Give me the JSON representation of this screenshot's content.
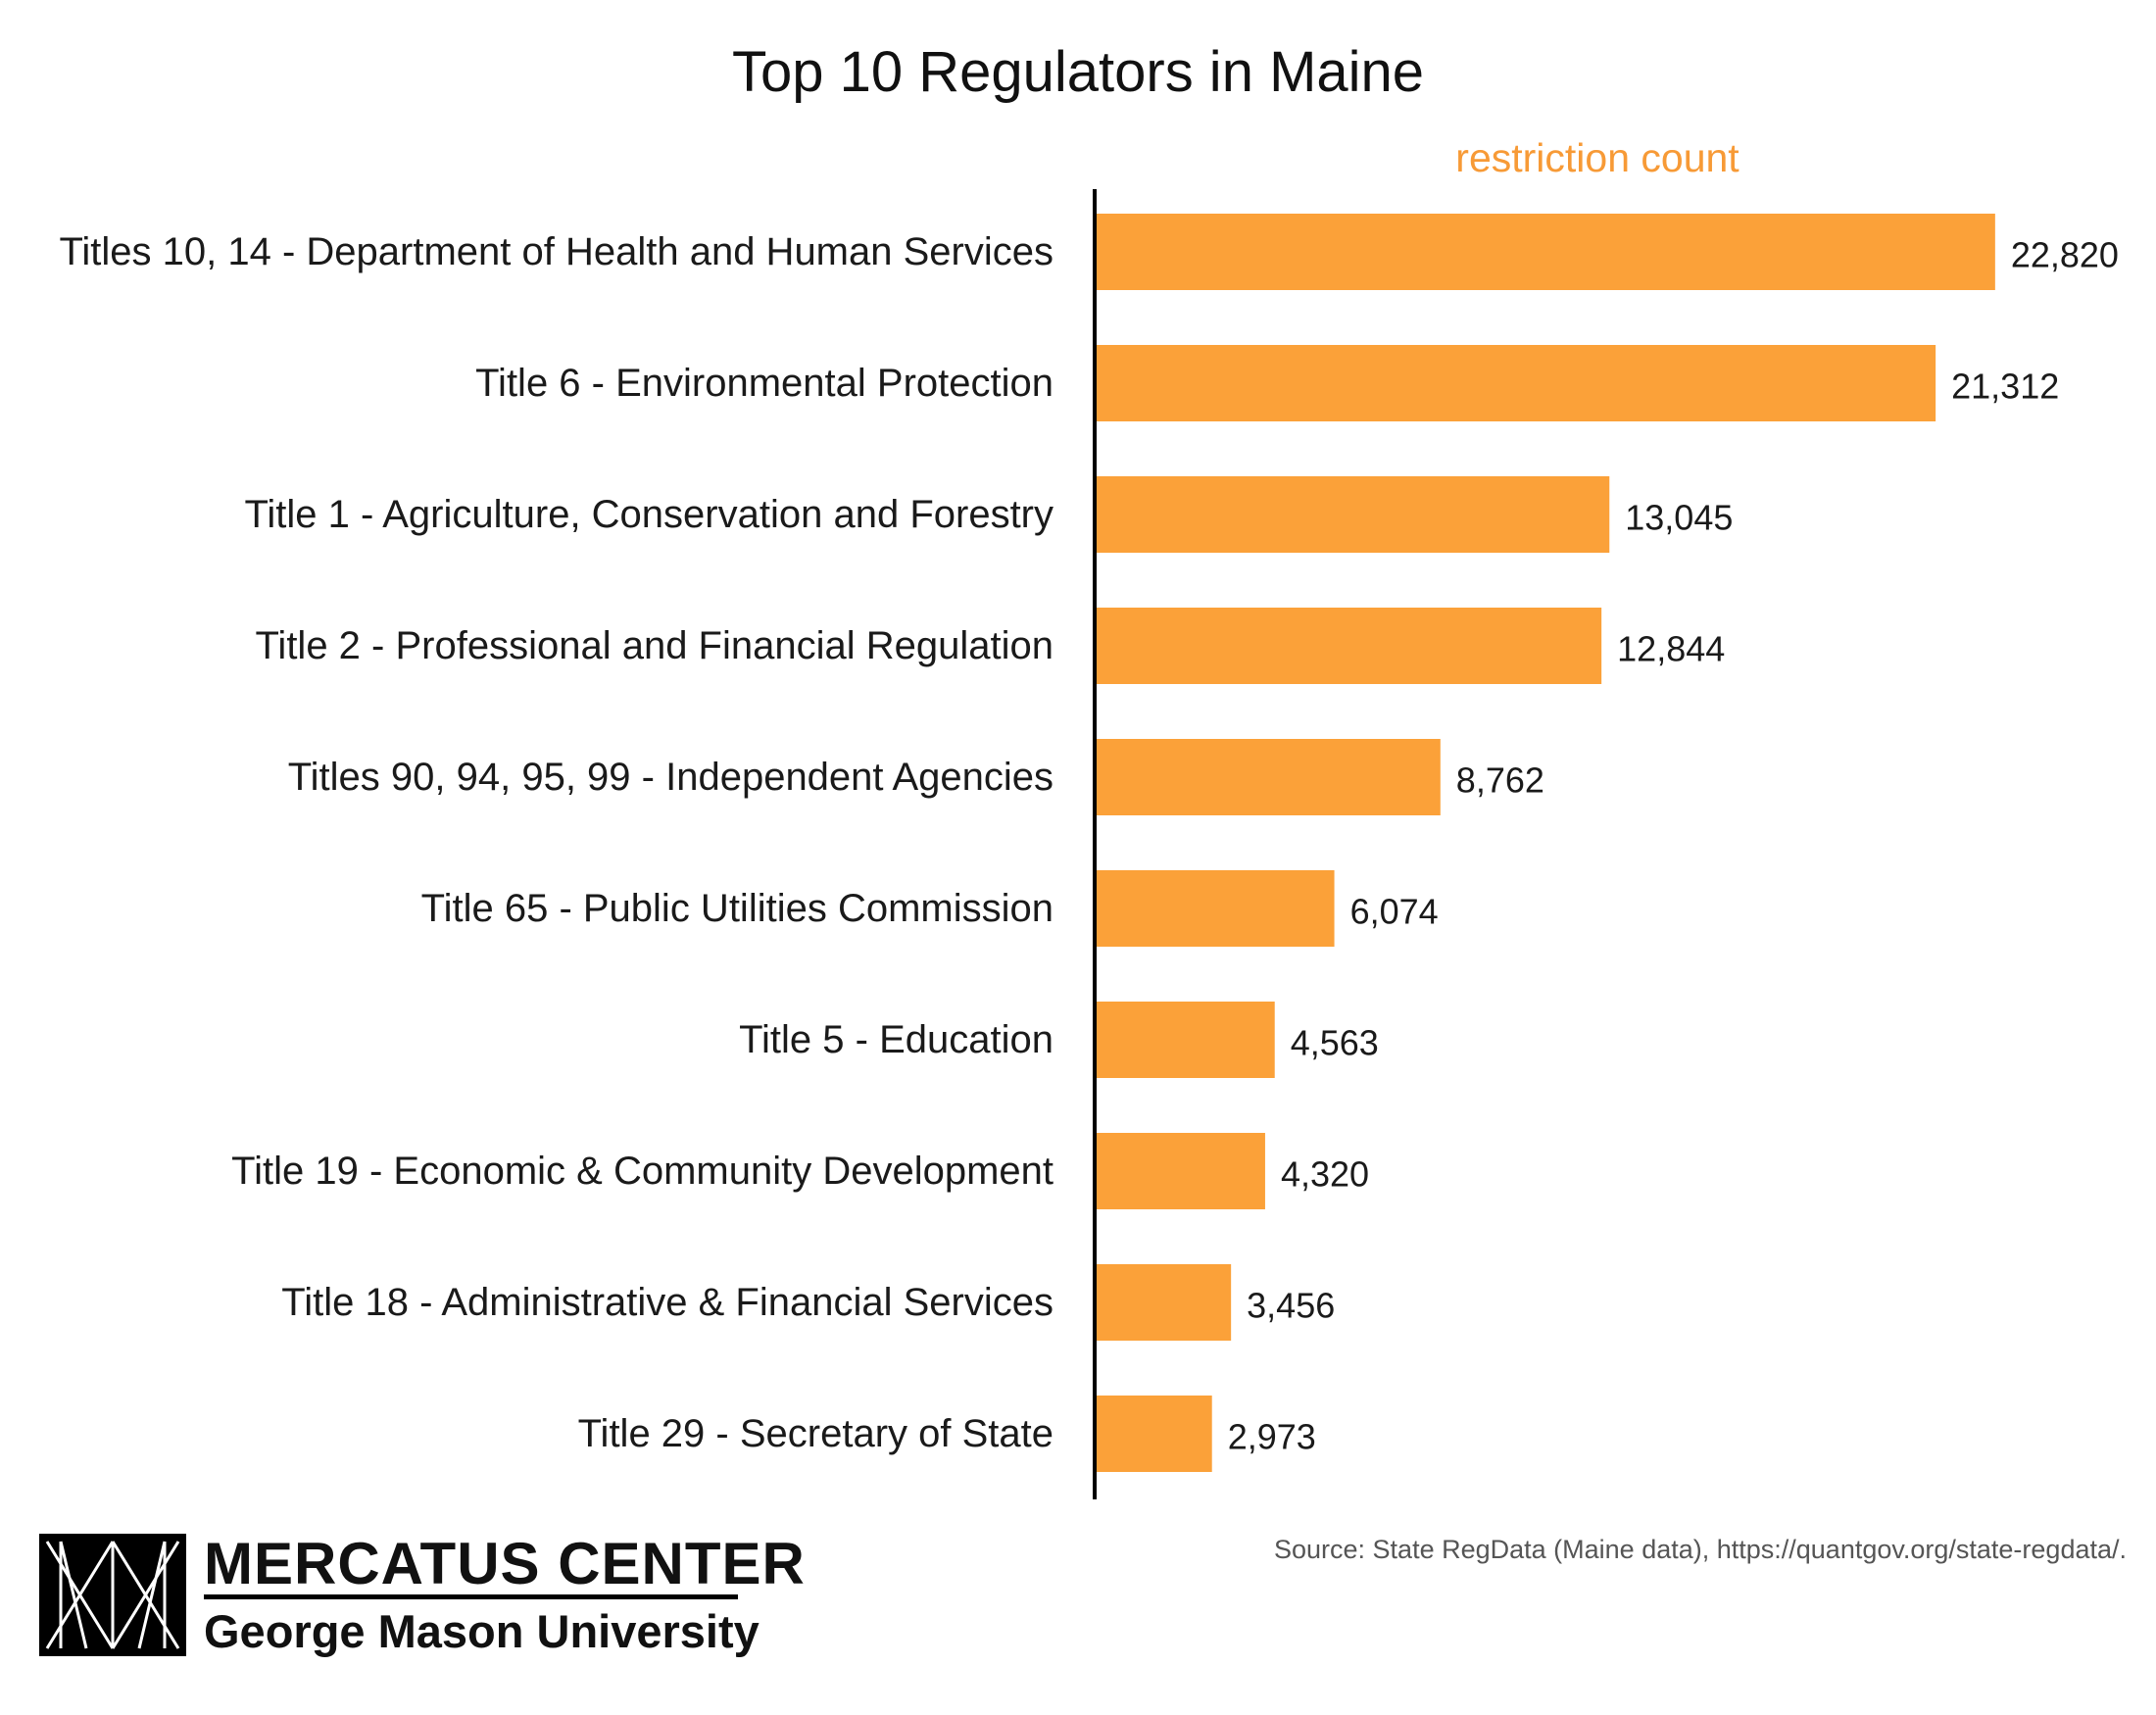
{
  "chart_data": {
    "type": "bar",
    "orientation": "horizontal",
    "title": "Top 10 Regulators in Maine",
    "measure_label": "restriction count",
    "categories": [
      "Titles 10, 14 - Department of Health and Human Services",
      "Title 6 - Environmental Protection",
      "Title 1 - Agriculture, Conservation and Forestry",
      "Title 2 - Professional and Financial Regulation",
      "Titles 90, 94, 95, 99 - Independent Agencies",
      "Title 65 - Public Utilities Commission",
      "Title 5 - Education",
      "Title 19 - Economic & Community Development",
      "Title 18 - Administrative & Financial Services",
      "Title 29 - Secretary of State"
    ],
    "values": [
      22820,
      21312,
      13045,
      12844,
      8762,
      6074,
      4563,
      4320,
      3456,
      2973
    ],
    "value_labels": [
      "22,820",
      "21,312",
      "13,045",
      "12,844",
      "8,762",
      "6,074",
      "4,563",
      "4,320",
      "3,456",
      "2,973"
    ],
    "xlim": [
      0,
      26400
    ],
    "grid": false,
    "legend": "none",
    "bar_color": "#FBA139",
    "axis_color": "#000000",
    "measure_label_color": "#F79A36"
  },
  "source": "Source: State RegData (Maine data), https://quantgov.org/state-regdata/.",
  "logo": {
    "line1": "MERCATUS CENTER",
    "line2": "George Mason University"
  }
}
